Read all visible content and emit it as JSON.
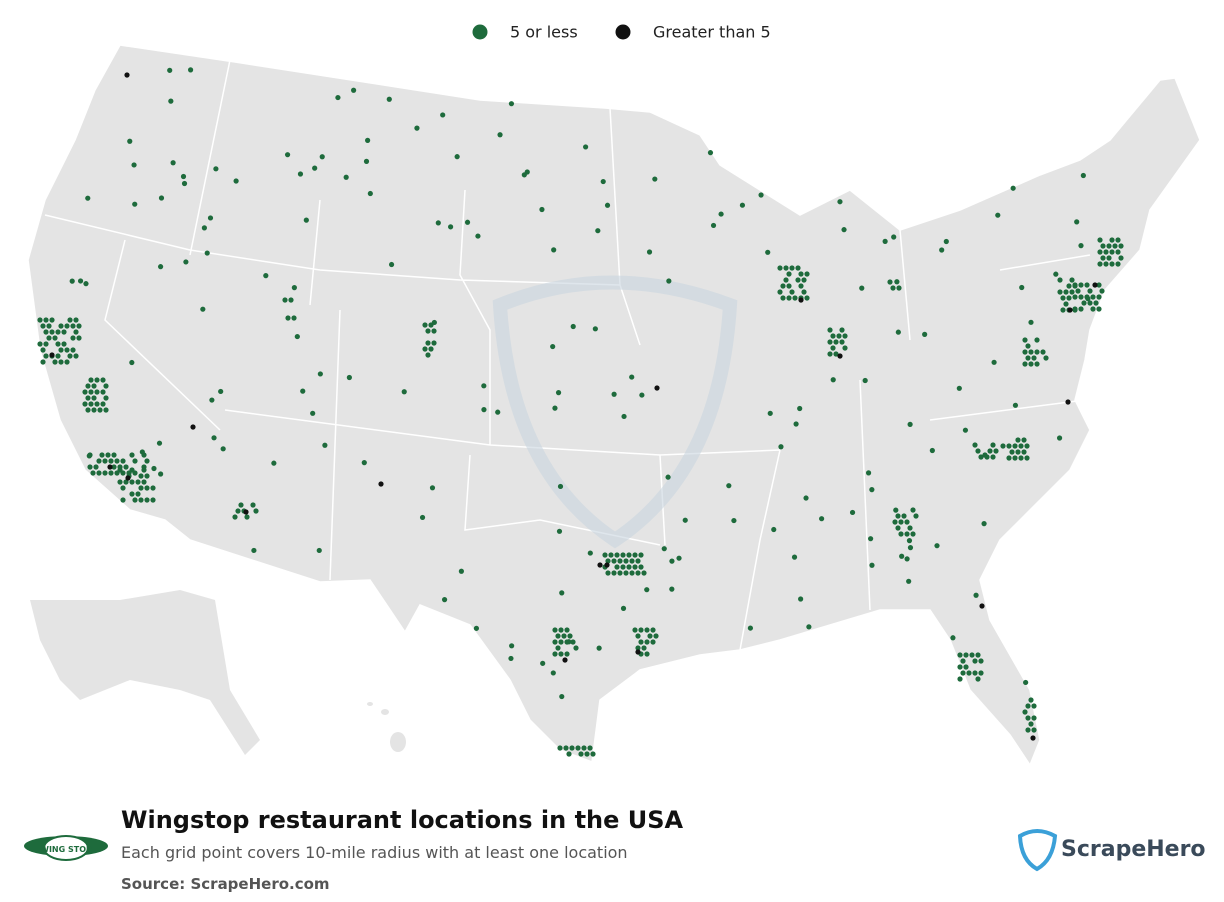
{
  "legend": {
    "items": [
      {
        "label": "5 or less",
        "color": "#1e6b3c"
      },
      {
        "label": "Greater than 5",
        "color": "#111111"
      }
    ]
  },
  "footer": {
    "title": "Wingstop restaurant locations in the USA",
    "subtitle": "Each grid point covers 10-mile radius with at least one location",
    "source": "Source: ScrapeHero.com",
    "brand": "ScrapeHero",
    "logo_text": "WING STOP"
  }
}
